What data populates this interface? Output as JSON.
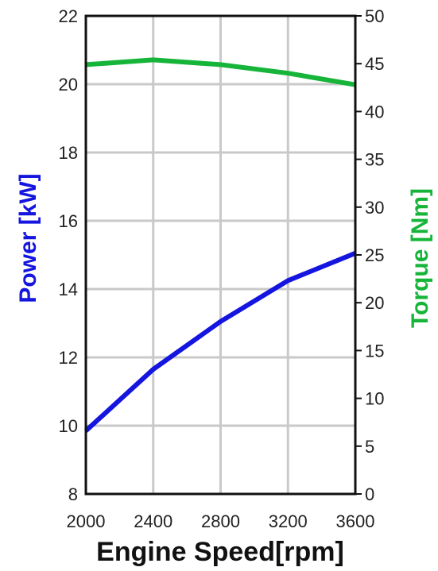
{
  "chart_data": {
    "type": "line",
    "xlabel": "Engine Speed[rpm]",
    "ylabel_left": "Power [kW]",
    "ylabel_right": "Torque [Nm]",
    "x": [
      2000,
      2400,
      2800,
      3200,
      3600
    ],
    "x_ticks": [
      "2000",
      "2400",
      "2800",
      "3200",
      "3600"
    ],
    "xlim": [
      2000,
      3600
    ],
    "ylim_left": [
      8,
      22
    ],
    "ylim_right": [
      0,
      50
    ],
    "y_ticks_left": [
      "8",
      "10",
      "12",
      "14",
      "16",
      "18",
      "20",
      "22"
    ],
    "y_ticks_right": [
      "0",
      "5",
      "10",
      "15",
      "20",
      "25",
      "30",
      "35",
      "40",
      "45",
      "50"
    ],
    "grid": true,
    "series": [
      {
        "axis": "left",
        "color": "#1515e0",
        "values": [
          9.85,
          11.65,
          13.05,
          14.25,
          15.05
        ]
      },
      {
        "axis": "right",
        "color": "#16b53a",
        "values": [
          44.9,
          45.4,
          44.9,
          44.0,
          42.8
        ]
      }
    ],
    "colors": {
      "power": "#1515e0",
      "torque": "#16b53a",
      "grid": "#c9c9c9",
      "axis": "#111111"
    }
  }
}
